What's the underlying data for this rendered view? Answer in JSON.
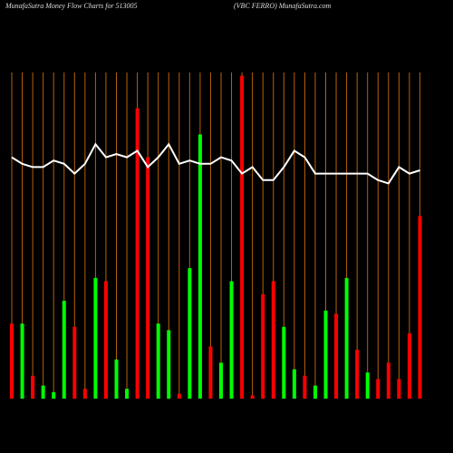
{
  "chart_data": {
    "type": "bar",
    "title": "MunafaSutra  Money Flow  Charts for 513005",
    "subtitle": "(VBC FERRO) MunafaSutra.com",
    "categories": [
      null,
      null,
      null,
      null,
      null,
      null,
      null,
      null,
      null,
      null,
      null,
      null,
      null,
      null,
      null,
      null,
      null,
      null,
      null,
      null,
      null,
      null,
      null,
      null,
      null,
      null,
      null,
      null,
      null,
      null,
      null,
      null,
      null,
      null,
      null,
      null,
      null,
      null,
      null,
      null
    ],
    "values": [
      23,
      23,
      7,
      4,
      2,
      30,
      22,
      3,
      37,
      36,
      12,
      3,
      89,
      74,
      23,
      21,
      1.5,
      40,
      81,
      16,
      11,
      36,
      99,
      1,
      32,
      36,
      22,
      9,
      7,
      4,
      27,
      26,
      37,
      15,
      8,
      6,
      11,
      6,
      20,
      56
    ],
    "colors": [
      "#ff0000",
      "#00ff00",
      "#ff0000",
      "#00ff00",
      "#00ff00",
      "#00ff00",
      "#ff0000",
      "#ff0000",
      "#00ff00",
      "#ff0000",
      "#00ff00",
      "#00ff00",
      "#ff0000",
      "#ff0000",
      "#00ff00",
      "#00ff00",
      "#ff0000",
      "#00ff00",
      "#00ff00",
      "#ff0000",
      "#00ff00",
      "#00ff00",
      "#ff0000",
      "#ff0000",
      "#ff0000",
      "#ff0000",
      "#00ff00",
      "#00ff00",
      "#ff0000",
      "#00ff00",
      "#00ff00",
      "#ff0000",
      "#00ff00",
      "#ff0000",
      "#00ff00",
      "#ff0000",
      "#ff0000",
      "#ff0000",
      "#ff0000",
      "#ff0000"
    ],
    "line_values": [
      74,
      72,
      71,
      71,
      73,
      72,
      69,
      72,
      78,
      74,
      75,
      74,
      76,
      71,
      74,
      78,
      72,
      73,
      72,
      72,
      74,
      73,
      69,
      71,
      67,
      67,
      71,
      76,
      74,
      69,
      69,
      69,
      69,
      69,
      69,
      67,
      66,
      71,
      69,
      70
    ],
    "line_color": "#ffffff",
    "ylim": [
      0,
      100
    ],
    "grid": true,
    "grid_color": "#b8620a"
  }
}
